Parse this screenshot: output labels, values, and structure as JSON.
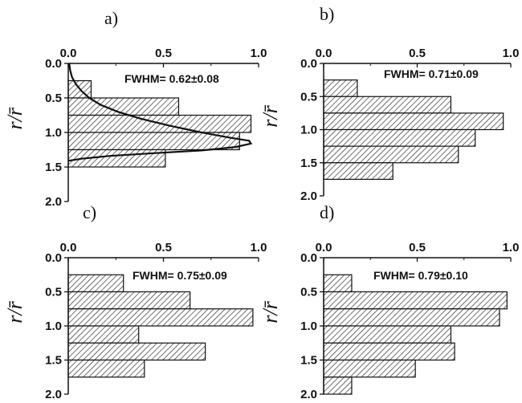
{
  "chart_data": [
    {
      "type": "bar",
      "orientation": "horizontal",
      "panel_label": "a)",
      "annotation": "FWHM= 0.62±0.08",
      "ylabel": "r/r̄",
      "bar_width": 0.25,
      "y_centers": [
        0.375,
        0.625,
        0.875,
        1.125,
        1.375
      ],
      "values": [
        0.12,
        0.58,
        0.96,
        0.9,
        0.51
      ],
      "xlim": [
        0,
        1.0
      ],
      "ylim": [
        0,
        2.0
      ],
      "x_ticks": [
        "0.0",
        "0.5",
        "1.0"
      ],
      "y_ticks": [
        "0.0",
        "0.5",
        "1.0",
        "1.5",
        "2.0"
      ],
      "fit_curve": {
        "description": "fitted distribution",
        "points": [
          [
            0.005,
            0.0
          ],
          [
            0.01,
            0.1
          ],
          [
            0.02,
            0.2
          ],
          [
            0.04,
            0.3
          ],
          [
            0.07,
            0.4
          ],
          [
            0.11,
            0.5
          ],
          [
            0.17,
            0.6
          ],
          [
            0.26,
            0.7
          ],
          [
            0.38,
            0.8
          ],
          [
            0.53,
            0.9
          ],
          [
            0.7,
            1.0
          ],
          [
            0.86,
            1.08
          ],
          [
            0.95,
            1.12
          ],
          [
            0.96,
            1.16
          ],
          [
            0.88,
            1.21
          ],
          [
            0.7,
            1.26
          ],
          [
            0.45,
            1.3
          ],
          [
            0.22,
            1.34
          ],
          [
            0.07,
            1.38
          ],
          [
            0.0,
            1.41
          ]
        ]
      }
    },
    {
      "type": "bar",
      "orientation": "horizontal",
      "panel_label": "b)",
      "annotation": "FWHM= 0.71±0.09",
      "ylabel": "r/r̄",
      "bar_width": 0.25,
      "y_centers": [
        0.375,
        0.625,
        0.875,
        1.125,
        1.375,
        1.625
      ],
      "values": [
        0.18,
        0.68,
        0.96,
        0.81,
        0.72,
        0.37
      ],
      "xlim": [
        0,
        1.0
      ],
      "ylim": [
        0,
        2.0
      ],
      "x_ticks": [
        "0.0",
        "0.5",
        "1.0"
      ],
      "y_ticks": [
        "0.0",
        "0.5",
        "1.0",
        "1.5",
        "2.0"
      ]
    },
    {
      "type": "bar",
      "orientation": "horizontal",
      "panel_label": "c)",
      "annotation": "FWHM= 0.75±0.09",
      "ylabel": "r/r̄",
      "bar_width": 0.25,
      "y_centers": [
        0.375,
        0.625,
        0.875,
        1.125,
        1.375,
        1.625
      ],
      "values": [
        0.29,
        0.64,
        0.97,
        0.37,
        0.72,
        0.4
      ],
      "xlim": [
        0,
        1.0
      ],
      "ylim": [
        0,
        2.0
      ],
      "x_ticks": [
        "0.0",
        "0.5",
        "1.0"
      ],
      "y_ticks": [
        "0.0",
        "0.5",
        "1.0",
        "1.5",
        "2.0"
      ]
    },
    {
      "type": "bar",
      "orientation": "horizontal",
      "panel_label": "d)",
      "annotation": "FWHM= 0.79±0.10",
      "ylabel": "r/r̄",
      "bar_width": 0.25,
      "y_centers": [
        0.375,
        0.625,
        0.875,
        1.125,
        1.375,
        1.625,
        1.875
      ],
      "values": [
        0.15,
        0.98,
        0.94,
        0.68,
        0.7,
        0.49,
        0.15
      ],
      "xlim": [
        0,
        1.0
      ],
      "ylim": [
        0,
        2.0
      ],
      "x_ticks": [
        "0.0",
        "0.5",
        "1.0"
      ],
      "y_ticks": [
        "0.0",
        "0.5",
        "1.0",
        "1.5",
        "2.0"
      ]
    }
  ],
  "colors": {
    "bar_fill": "#ffffff",
    "hatch": "#222222",
    "stroke": "#111111"
  }
}
